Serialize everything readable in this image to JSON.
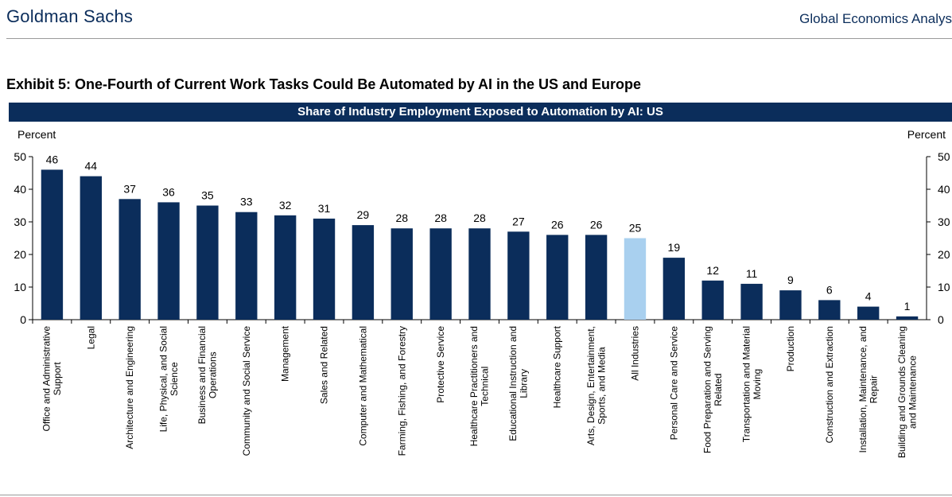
{
  "header": {
    "brand": "Goldman Sachs",
    "section": "Global Economics Analys"
  },
  "exhibit_title": "Exhibit 5: One-Fourth of Current Work Tasks Could Be Automated by AI in the US and Europe",
  "colors": {
    "navy": "#0b2d5b",
    "highlight": "#a9d0ef"
  },
  "chart_data": {
    "type": "bar",
    "title": "Share of Industry Employment Exposed to Automation by AI: US",
    "y_unit_left": "Percent",
    "y_unit_right": "Percent",
    "ylim": [
      0,
      50
    ],
    "yticks": [
      0,
      10,
      20,
      30,
      40,
      50
    ],
    "grid": false,
    "highlight_category": "All Industries",
    "categories": [
      "Office and Administrative Support",
      "Legal",
      "Architecture and Engineering",
      "Life, Physical, and Social Science",
      "Business and Financial Operations",
      "Community and Social Service",
      "Management",
      "Sales and Related",
      "Computer and Mathematical",
      "Farming, Fishing, and Forestry",
      "Protective Service",
      "Healthcare Practitioners and Technical",
      "Educational Instruction and Library",
      "Healthcare Support",
      "Arts, Design, Entertainment, Sports, and Media",
      "All Industries",
      "Personal Care and Service",
      "Food Preparation and Serving Related",
      "Transportation and Material Moving",
      "Production",
      "Construction and Extraction",
      "Installation, Maintenance, and Repair",
      "Building and Grounds Cleaning and Maintenance"
    ],
    "category_label_lines": [
      [
        "Office and Administrative",
        "Support"
      ],
      [
        "Legal"
      ],
      [
        "Architecture and Engineering"
      ],
      [
        "Life, Physical, and Social",
        "Science"
      ],
      [
        "Business and Financial",
        "Operations"
      ],
      [
        "Community and Social Service"
      ],
      [
        "Management"
      ],
      [
        "Sales and Related"
      ],
      [
        "Computer and Mathematical"
      ],
      [
        "Farming, Fishing, and Forestry"
      ],
      [
        "Protective Service"
      ],
      [
        "Healthcare Practitioners and",
        "Technical"
      ],
      [
        "Educational Instruction and",
        "Library"
      ],
      [
        "Healthcare Support"
      ],
      [
        "Arts, Design, Entertainment,",
        "Sports, and Media"
      ],
      [
        "All Industries"
      ],
      [
        "Personal Care and Service"
      ],
      [
        "Food Preparation and Serving",
        "Related"
      ],
      [
        "Transportation and Material",
        "Moving"
      ],
      [
        "Production"
      ],
      [
        "Construction and Extraction"
      ],
      [
        "Installation, Maintenance, and",
        "Repair"
      ],
      [
        "Building and Grounds Cleaning",
        "and Maintenance"
      ]
    ],
    "values": [
      46,
      44,
      37,
      36,
      35,
      33,
      32,
      31,
      29,
      28,
      28,
      28,
      27,
      26,
      26,
      25,
      19,
      12,
      11,
      9,
      6,
      4,
      1
    ],
    "data_labels": [
      "46",
      "44",
      "37",
      "36",
      "35",
      "33",
      "32",
      "31",
      "29",
      "28",
      "28",
      "28",
      "27",
      "26",
      "26",
      "25",
      "19",
      "12",
      "11",
      "9",
      "6",
      "4",
      "1"
    ]
  }
}
